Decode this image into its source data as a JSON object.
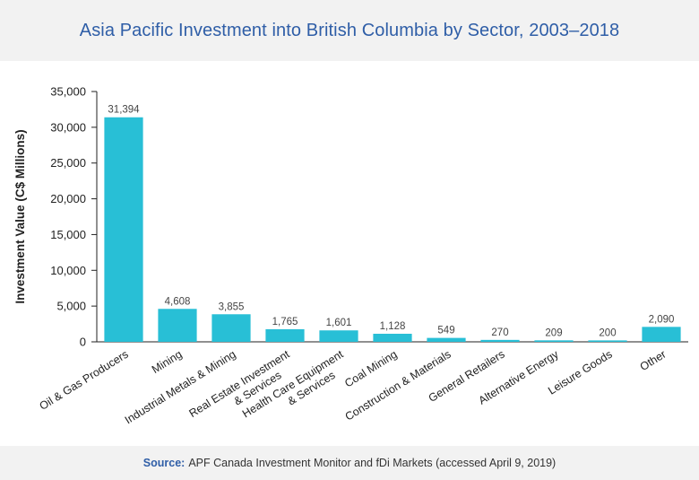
{
  "chart_data": {
    "type": "bar",
    "title": "Asia Pacific Investment into British Columbia by Sector, 2003–2018",
    "xlabel": "",
    "ylabel": "Investment Value (C$ Millions)",
    "ylim": [
      0,
      35000
    ],
    "yticks": [
      0,
      5000,
      10000,
      15000,
      20000,
      25000,
      30000,
      35000
    ],
    "ytick_labels": [
      "0",
      "5,000",
      "10,000",
      "15,000",
      "20,000",
      "25,000",
      "30,000",
      "35,000"
    ],
    "grid": false,
    "legend": "none",
    "bar_color": "#28bfd6",
    "categories": [
      [
        "Oil & Gas Producers"
      ],
      [
        "Mining"
      ],
      [
        "Industrial Metals & Mining"
      ],
      [
        "Real Estate Investment",
        "& Services"
      ],
      [
        "Health Care Equipment",
        "& Services"
      ],
      [
        "Coal Mining"
      ],
      [
        "Construction & Materials"
      ],
      [
        "General Retailers"
      ],
      [
        "Alternative Energy"
      ],
      [
        "Leisure Goods"
      ],
      [
        "Other"
      ]
    ],
    "values": [
      31394,
      4608,
      3855,
      1765,
      1601,
      1128,
      549,
      270,
      209,
      200,
      2090
    ],
    "value_labels": [
      "31,394",
      "4,608",
      "3,855",
      "1,765",
      "1,601",
      "1,128",
      "549",
      "270",
      "209",
      "200",
      "2,090"
    ]
  },
  "footer": {
    "source_label": "Source:",
    "source_text": "APF Canada Investment Monitor and fDi Markets (accessed April 9, 2019)"
  },
  "colors": {
    "title": "#2f5ea7",
    "band_background": "#f2f2f2",
    "axis": "#222222"
  }
}
